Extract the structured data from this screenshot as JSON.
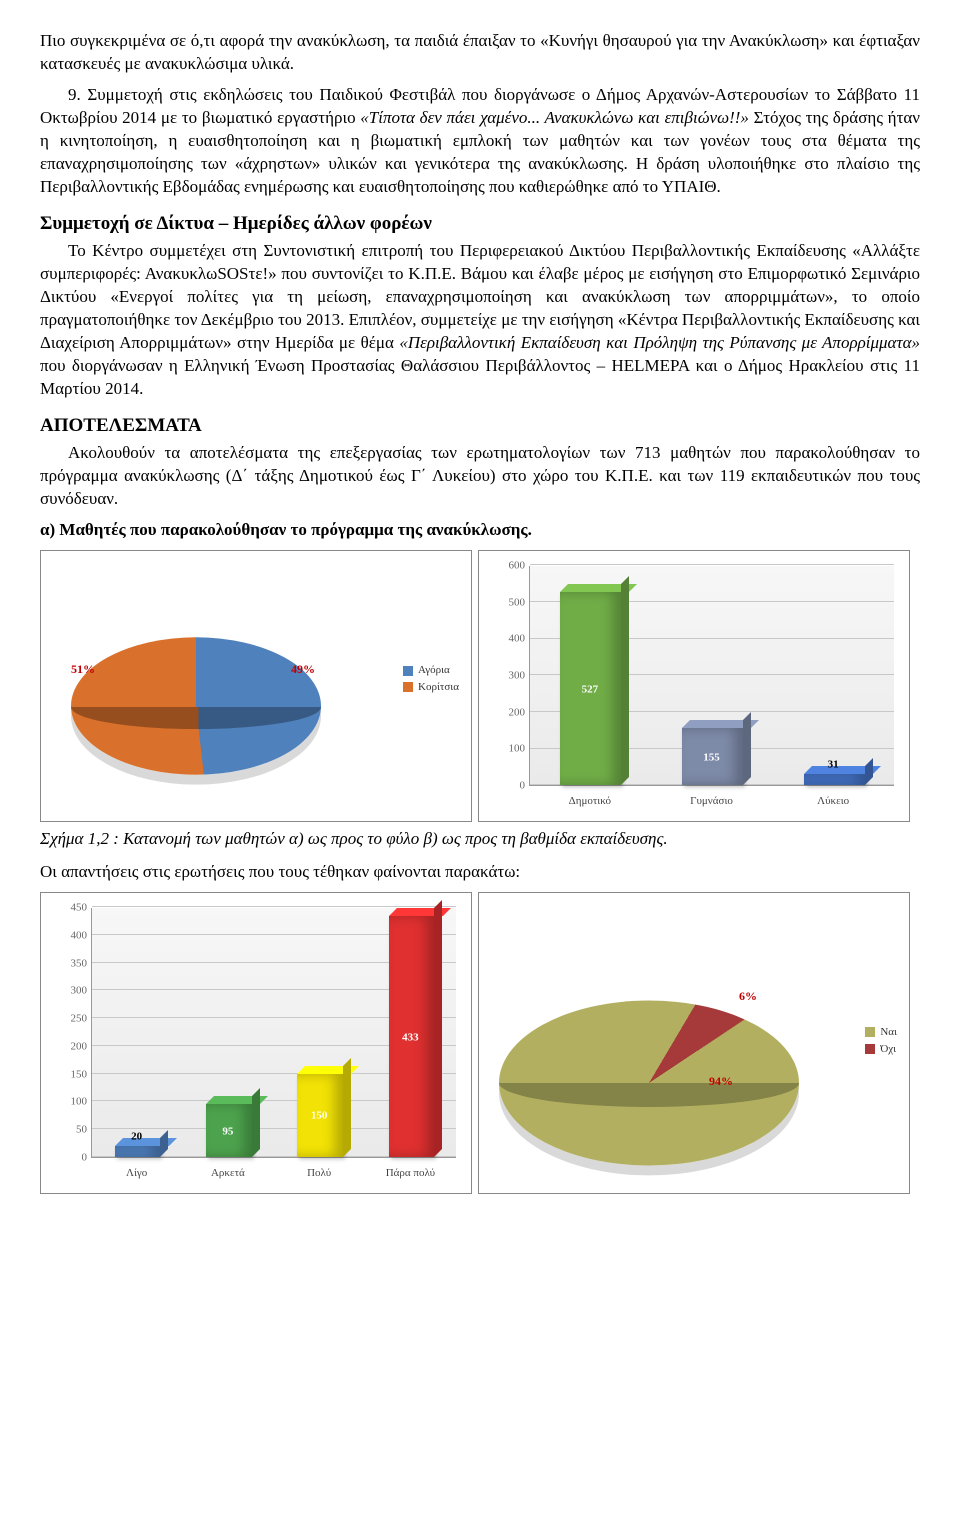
{
  "paragraphs": {
    "p0": "Πιο συγκεκριμένα σε ό,τι αφορά την ανακύκλωση, τα παιδιά έπαιξαν το «Κυνήγι θησαυρού για την Ανακύκλωση» και έφτιαξαν κατασκευές με ανακυκλώσιμα υλικά.",
    "p1a": "9. Συμμετοχή στις εκδηλώσεις του Παιδικού Φεστιβάλ που διοργάνωσε ο Δήμος Αρχανών-Αστερουσίων το Σάββατο 11 Οκτωβρίου 2014 με το βιωματικό εργαστήριο ",
    "p1i": "«Τίποτα δεν πάει χαμένο... Ανακυκλώνω και επιβιώνω!!» ",
    "p1b": "Στόχος της δράσης ήταν η κινητοποίηση, η ευαισθητοποίηση και η βιωματική εμπλοκή των μαθητών και των γονέων τους στα θέματα της επαναχρησιμοποίησης των «άχρηστων» υλικών και γενικότερα της ανακύκλωσης. Η δράση υλοποιήθηκε στο πλαίσιο της Περιβαλλοντικής Εβδομάδας ενημέρωσης και ευαισθητοποίησης που καθιερώθηκε από το ΥΠΑΙΘ.",
    "h1": "Συμμετοχή σε Δίκτυα – Ημερίδες άλλων φορέων",
    "p2a": "Το Κέντρο συμμετέχει στη Συντονιστική επιτροπή του Περιφερειακού Δικτύου Περιβαλλοντικής Εκπαίδευσης «Αλλάξτε συμπεριφορές: ΑνακυκλωSOSτε!» που συντονίζει το Κ.Π.Ε. Βάμου και έλαβε μέρος με εισήγηση στο Επιμορφωτικό Σεμινάριο Δικτύου «Ενεργοί πολίτες για τη μείωση, επαναχρησιμοποίηση και ανακύκλωση των απορριμμάτων», το οποίο πραγματοποιήθηκε τον Δεκέμβριο του 2013. Επιπλέον, συμμετείχε με την εισήγηση «Κέντρα Περιβαλλοντικής Εκπαίδευσης και Διαχείριση Απορριμμάτων» στην Ημερίδα με θέμα ",
    "p2i": "«Περιβαλλοντική Εκπαίδευση και  Πρόληψη της Ρύπανσης με Απορρίμματα» ",
    "p2b": "που διοργάνωσαν η Ελληνική Ένωση Προστασίας Θαλάσσιου Περιβάλλοντος – HELMEPA και ο Δήμος Ηρακλείου στις 11 Μαρτίου 2014.",
    "h2": "ΑΠΟΤΕΛΕΣΜΑΤΑ",
    "p3": "Ακολουθούν τα αποτελέσματα της επεξεργασίας των ερωτηματολογίων των 713 μαθητών που παρακολούθησαν το πρόγραμμα ανακύκλωσης (Δ΄ τάξης Δημοτικού έως Γ΄ Λυκείου) στο χώρο του Κ.Π.Ε. και των 119 εκπαιδευτικών που τους συνόδευαν.",
    "sub1": "α) Μαθητές που παρακολούθησαν το πρόγραμμα της ανακύκλωσης.",
    "caption1_prefix": "Σχήμα 1,2",
    "caption1_rest": ": Κατανομή των μαθητών α) ως προς το φύλο β) ως προς τη βαθμίδα εκπαίδευσης.",
    "p4": "Οι απαντήσεις στις ερωτήσεις που τους τέθηκαν φαίνονται παρακάτω:"
  },
  "chart1_pie": {
    "type": "pie",
    "series": [
      {
        "label": "Αγόρια",
        "value": 49,
        "color": "#4f81bd",
        "text": "49%"
      },
      {
        "label": "Κορίτσια",
        "value": 51,
        "color": "#d9702b",
        "text": "51%"
      }
    ],
    "legend_label_color": "#333",
    "legend_fontsize": 11,
    "label_fontsize": 12,
    "label_color": "#c00000",
    "background": "#ffffff"
  },
  "chart2_bar": {
    "type": "bar",
    "categories": [
      "Δημοτικό",
      "Γυμνάσιο",
      "Λύκειο"
    ],
    "values": [
      527,
      155,
      31
    ],
    "value_texts": [
      "527",
      "155",
      "31"
    ],
    "colors": [
      "#70ad47",
      "#7d8aa8",
      "#4472c4"
    ],
    "ymax": 600,
    "ystep": 100,
    "axis_color": "#999",
    "grid_color": "#c8c8c8",
    "label_fontsize": 11,
    "value_fontsize": 11
  },
  "chart3_bar": {
    "type": "bar",
    "categories": [
      "Λίγο",
      "Αρκετά",
      "Πολύ",
      "Πάρα πολύ"
    ],
    "values": [
      20,
      95,
      150,
      433
    ],
    "value_texts": [
      "20",
      "95",
      "150",
      "433"
    ],
    "colors": [
      "#5080c0",
      "#4da34d",
      "#f2e205",
      "#e03030"
    ],
    "ymax": 450,
    "ystep": 50,
    "axis_color": "#999",
    "grid_color": "#c8c8c8",
    "label_fontsize": 11,
    "value_fontsize": 11
  },
  "chart4_pie": {
    "type": "pie",
    "series": [
      {
        "label": "Ναι",
        "value": 94,
        "color": "#b2b060",
        "text": "94%"
      },
      {
        "label": "Όχι",
        "value": 6,
        "color": "#a63a3a",
        "text": "6%"
      }
    ],
    "legend_label_color": "#333",
    "legend_fontsize": 11,
    "label_fontsize": 12,
    "label_color": "#c00000",
    "background": "#ffffff"
  }
}
